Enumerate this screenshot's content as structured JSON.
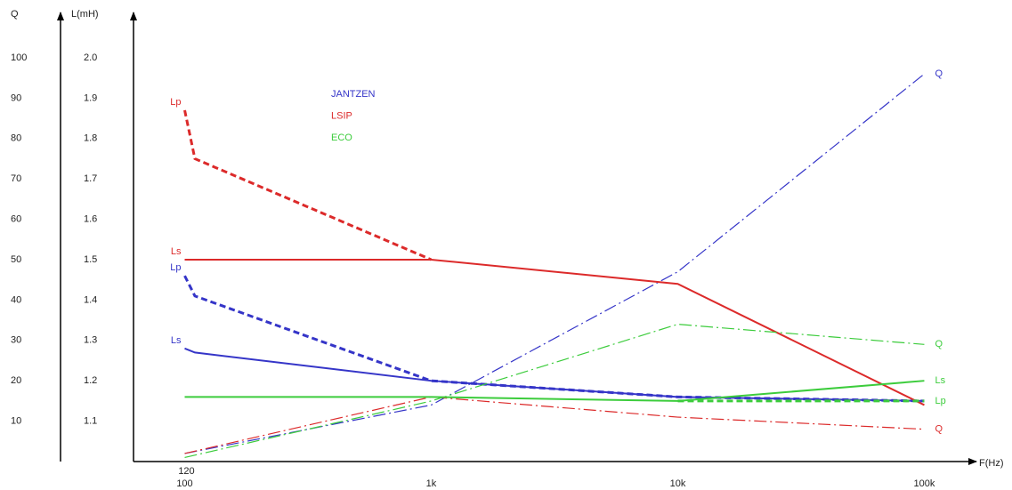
{
  "chart_data": {
    "type": "line",
    "x_label": "F(Hz)",
    "y_label": "Q",
    "y2_label": "L(mH)",
    "xscale": "log",
    "xlim": [
      62,
      160000
    ],
    "xticks": [
      {
        "value": 100,
        "label": "100"
      },
      120,
      {
        "value": 1000,
        "label": "1k"
      },
      {
        "value": 10000,
        "label": "10k"
      },
      {
        "value": 100000,
        "label": "100k"
      }
    ],
    "ylim": [
      0,
      111
    ],
    "yticks": [
      10,
      20,
      30,
      40,
      50,
      60,
      70,
      80,
      90,
      100
    ],
    "y2lim": [
      1,
      2.11
    ],
    "y2ticks": [
      1.1,
      1.2,
      1.3,
      1.4,
      1.5,
      1.6,
      1.7,
      1.8,
      1.9,
      {
        "value": 2,
        "label": "2.0"
      }
    ],
    "groups": [
      {
        "name": "JANTZEN",
        "color": "#3535c8",
        "series": [
          {
            "name": "Lp",
            "style": "dashed",
            "axis": "y2",
            "label_side": "start",
            "x": [
              100,
              110,
              1000,
              10000,
              100000
            ],
            "values": [
              1.46,
              1.41,
              1.2,
              1.16,
              1.15
            ]
          },
          {
            "name": "Ls",
            "style": "solid",
            "axis": "y2",
            "label_side": "start",
            "x": [
              100,
              110,
              1000,
              10000,
              100000
            ],
            "values": [
              1.28,
              1.27,
              1.2,
              1.16,
              1.15
            ]
          },
          {
            "name": "Q",
            "style": "dashdot",
            "axis": "y",
            "label_side": "end",
            "x": [
              100,
              1000,
              10000,
              100000
            ],
            "values": [
              2,
              14,
              47,
              96
            ]
          }
        ]
      },
      {
        "name": "LSIP",
        "color": "#dc2a2a",
        "series": [
          {
            "name": "Lp",
            "style": "dashed",
            "axis": "y2",
            "label_side": "start",
            "x": [
              100,
              110,
              1000
            ],
            "values": [
              1.87,
              1.75,
              1.5
            ]
          },
          {
            "name": "Ls",
            "style": "solid",
            "axis": "y2",
            "label_side": "start",
            "x": [
              100,
              1000,
              10000,
              100000
            ],
            "values": [
              1.5,
              1.5,
              1.44,
              1.14
            ]
          },
          {
            "name": "Q",
            "style": "dashdot",
            "axis": "y",
            "label_side": "end",
            "x": [
              100,
              1000,
              10000,
              100000
            ],
            "values": [
              2,
              16,
              11,
              8
            ]
          }
        ]
      },
      {
        "name": "ECO",
        "color": "#3ccc3c",
        "series": [
          {
            "name": "Ls",
            "style": "solid",
            "axis": "y2",
            "label_side": "end",
            "x": [
              100,
              1000,
              10000,
              100000
            ],
            "values": [
              1.16,
              1.16,
              1.15,
              1.2
            ]
          },
          {
            "name": "Lp",
            "style": "dashed",
            "axis": "y2",
            "label_side": "end",
            "x": [
              10000,
              100000
            ],
            "values": [
              1.15,
              1.15
            ]
          },
          {
            "name": "Q",
            "style": "dashdot",
            "axis": "y",
            "label_side": "end",
            "x": [
              100,
              1000,
              10000,
              100000
            ],
            "values": [
              1,
              15,
              34,
              29
            ]
          }
        ]
      }
    ]
  }
}
